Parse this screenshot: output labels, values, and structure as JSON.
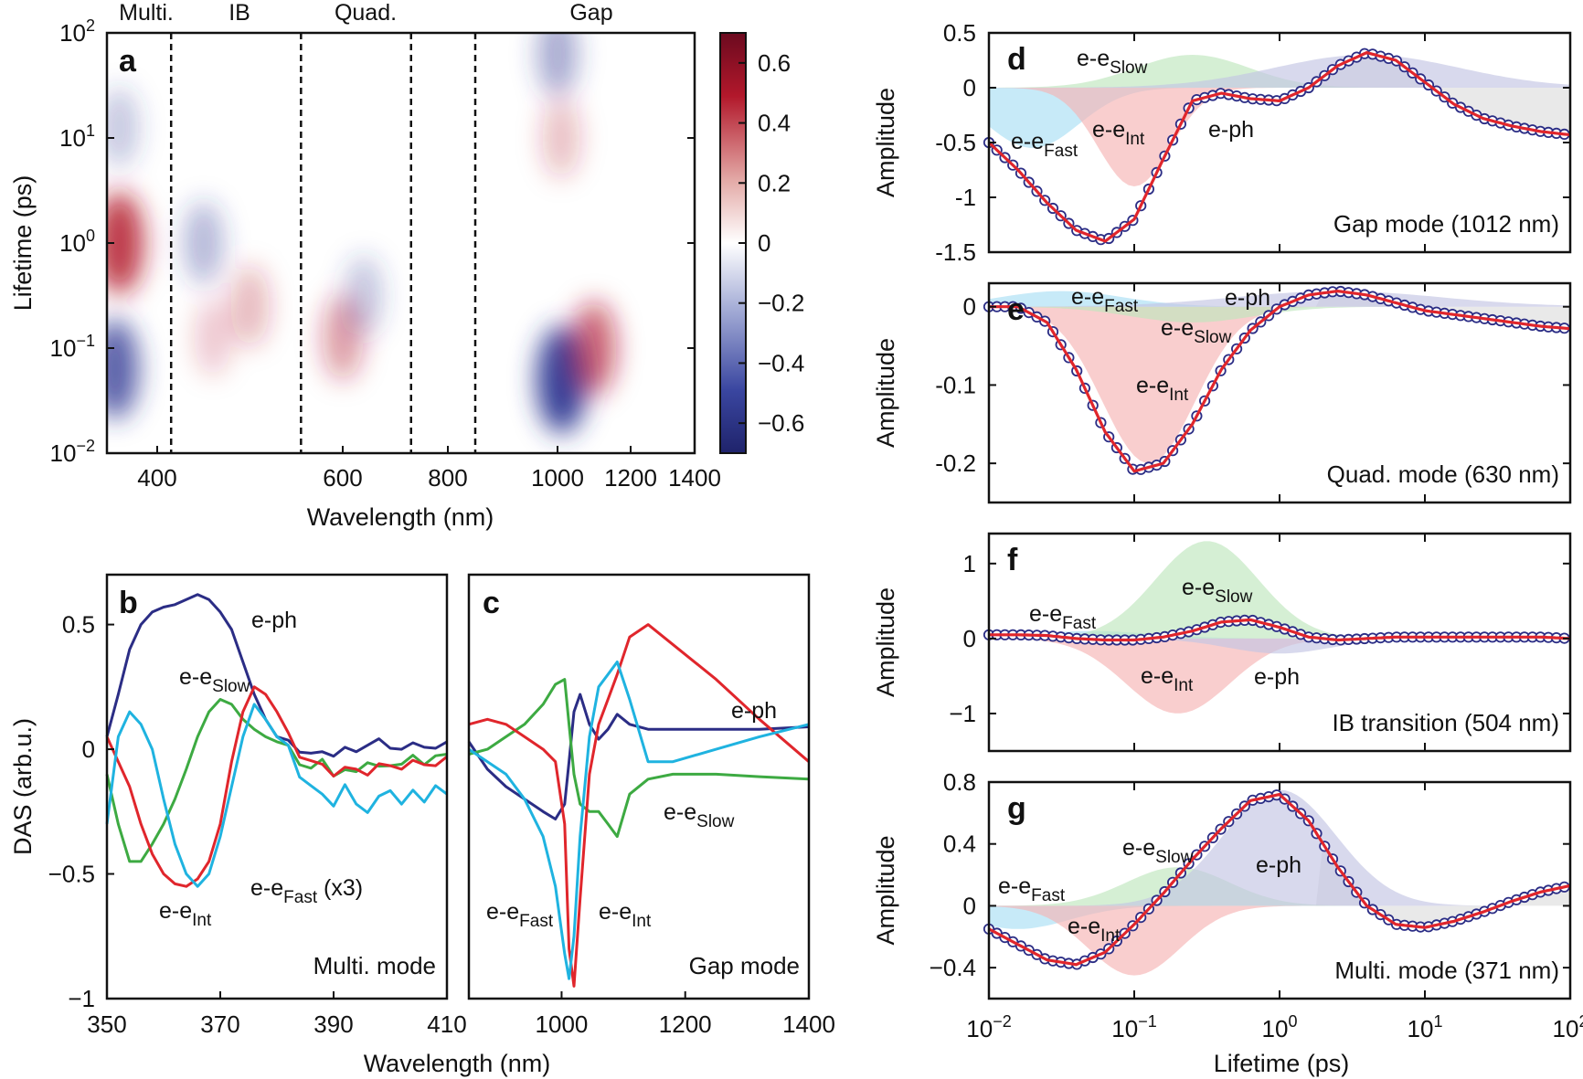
{
  "colors": {
    "ee_fast": "#1fb3e0",
    "ee_int": "#e0262c",
    "ee_slow": "#3daa42",
    "e_ph": "#2b2d85",
    "fit": "#e0262c",
    "pos_map": "#b2182b",
    "neg_map": "#2a3591"
  },
  "panel_labels": {
    "a": "a",
    "b": "b",
    "c": "c",
    "d": "d",
    "e": "e",
    "f": "f",
    "g": "g"
  },
  "annotations": {
    "ee_fast_base": "e-e",
    "ee_fast_sub": "Fast",
    "ee_fast_x3": " (x3)",
    "ee_int_base": "e-e",
    "ee_int_sub": "Int",
    "ee_slow_base": "e-e",
    "ee_slow_sub": "Slow",
    "e_ph": "e-ph"
  },
  "chart_data": [
    {
      "id": "a",
      "type": "heatmap",
      "title": "",
      "xlabel": "Wavelength (nm)",
      "ylabel": "Lifetime (ps)",
      "x_ticks": [
        "400",
        "600",
        "800",
        "1000",
        "1200",
        "1400"
      ],
      "y_ticks": [
        {
          "base": "10",
          "exp": "2"
        },
        {
          "base": "10",
          "exp": "1"
        },
        {
          "base": "10",
          "exp": "0"
        },
        {
          "base": "10",
          "exp": "−1"
        },
        {
          "base": "10",
          "exp": "−2"
        }
      ],
      "y_range_log10": [
        -2,
        2
      ],
      "regions": [
        "Multi.",
        "IB",
        "Quad.",
        "Gap"
      ],
      "region_boundaries_nm": [
        415,
        555,
        730,
        850
      ],
      "colorbar": {
        "range": [
          -0.7,
          0.7
        ],
        "ticks": [
          "0.6",
          "0.4",
          "0.2",
          "0",
          "−0.2",
          "−0.4",
          "−0.6"
        ]
      },
      "blobs": [
        {
          "band": "Multi.",
          "center_nm": 355,
          "log_t": 0.0,
          "value": 0.6
        },
        {
          "band": "Multi.",
          "center_nm": 350,
          "log_t": -1.2,
          "value": -0.55
        },
        {
          "band": "Multi.",
          "center_nm": 355,
          "log_t": 1.1,
          "value": -0.2
        },
        {
          "band": "IB",
          "center_nm": 450,
          "log_t": 0.0,
          "value": -0.25
        },
        {
          "band": "IB",
          "center_nm": 500,
          "log_t": -0.6,
          "value": 0.22
        },
        {
          "band": "IB",
          "center_nm": 460,
          "log_t": -0.9,
          "value": 0.15
        },
        {
          "band": "Quad.",
          "center_nm": 600,
          "log_t": -0.9,
          "value": 0.3
        },
        {
          "band": "Quad.",
          "center_nm": 640,
          "log_t": -0.5,
          "value": -0.2
        },
        {
          "band": "Gap",
          "center_nm": 1012,
          "log_t": -1.3,
          "value": -0.7
        },
        {
          "band": "Gap",
          "center_nm": 1010,
          "log_t": 1.0,
          "value": 0.2
        },
        {
          "band": "Gap",
          "center_nm": 1000,
          "log_t": 1.8,
          "value": -0.3
        },
        {
          "band": "Gap",
          "center_nm": 1100,
          "log_t": -1.0,
          "value": 0.45
        }
      ]
    },
    {
      "id": "b",
      "type": "line",
      "xlabel": "Wavelength (nm)",
      "ylabel": "DAS (arb.u.)",
      "mode_label": "Multi. mode",
      "xlim": [
        350,
        410
      ],
      "ylim": [
        -1,
        0.7
      ],
      "x_ticks": [
        "350",
        "370",
        "390",
        "410"
      ],
      "y_ticks": [
        "0.5",
        "0",
        "−0.5",
        "−1"
      ],
      "series": [
        {
          "name": "e-ph",
          "x": [
            350,
            352,
            354,
            356,
            358,
            360,
            362,
            364,
            366,
            368,
            370,
            372,
            374,
            376,
            378,
            380,
            382,
            384,
            386,
            388,
            390,
            392,
            394,
            396,
            398,
            400,
            402,
            404,
            406,
            408,
            410
          ],
          "values": [
            0.05,
            0.22,
            0.4,
            0.5,
            0.55,
            0.57,
            0.58,
            0.6,
            0.62,
            0.6,
            0.55,
            0.48,
            0.35,
            0.22,
            0.12,
            0.05,
            0.02,
            0.0,
            -0.02,
            -0.03,
            -0.02,
            0.0,
            0.01,
            0.02,
            0.03,
            0.02,
            0.0,
            0.01,
            0.02,
            0.0,
            0.01
          ]
        },
        {
          "name": "e-e Slow",
          "x": [
            350,
            352,
            354,
            356,
            358,
            360,
            362,
            364,
            366,
            368,
            370,
            372,
            374,
            376,
            378,
            380,
            382,
            384,
            386,
            388,
            390,
            392,
            394,
            396,
            398,
            400,
            402,
            404,
            406,
            408,
            410
          ],
          "values": [
            -0.1,
            -0.3,
            -0.45,
            -0.45,
            -0.38,
            -0.3,
            -0.2,
            -0.08,
            0.05,
            0.15,
            0.2,
            0.18,
            0.12,
            0.08,
            0.05,
            0.03,
            0.0,
            -0.05,
            -0.08,
            -0.06,
            -0.1,
            -0.09,
            -0.07,
            -0.05,
            -0.08,
            -0.05,
            -0.06,
            -0.04,
            -0.05,
            -0.03,
            -0.04
          ]
        },
        {
          "name": "e-e Int",
          "x": [
            350,
            352,
            354,
            356,
            358,
            360,
            362,
            364,
            366,
            368,
            370,
            372,
            374,
            376,
            378,
            380,
            382,
            384,
            386,
            388,
            390,
            392,
            394,
            396,
            398,
            400,
            402,
            404,
            406,
            408,
            410
          ],
          "values": [
            0.05,
            -0.05,
            -0.15,
            -0.3,
            -0.42,
            -0.5,
            -0.54,
            -0.55,
            -0.52,
            -0.45,
            -0.3,
            -0.05,
            0.15,
            0.25,
            0.22,
            0.15,
            0.05,
            -0.02,
            -0.05,
            -0.08,
            -0.1,
            -0.08,
            -0.06,
            -0.1,
            -0.07,
            -0.05,
            -0.08,
            -0.06,
            -0.05,
            -0.07,
            -0.05
          ]
        },
        {
          "name": "e-e Fast (x3)",
          "x": [
            350,
            352,
            354,
            356,
            358,
            360,
            362,
            364,
            366,
            368,
            370,
            372,
            374,
            376,
            378,
            380,
            382,
            384,
            386,
            388,
            390,
            392,
            394,
            396,
            398,
            400,
            402,
            404,
            406,
            408,
            410
          ],
          "values": [
            -0.3,
            0.05,
            0.15,
            0.1,
            0.0,
            -0.2,
            -0.38,
            -0.5,
            -0.55,
            -0.5,
            -0.35,
            -0.15,
            0.05,
            0.18,
            0.12,
            0.05,
            0.0,
            -0.1,
            -0.15,
            -0.2,
            -0.22,
            -0.15,
            -0.2,
            -0.25,
            -0.2,
            -0.15,
            -0.22,
            -0.18,
            -0.2,
            -0.15,
            -0.2
          ]
        }
      ]
    },
    {
      "id": "c",
      "type": "line",
      "xlabel": "Wavelength (nm)",
      "ylabel": "",
      "mode_label": "Gap mode",
      "xlim": [
        850,
        1400
      ],
      "ylim": [
        -1,
        0.7
      ],
      "x_ticks": [
        "1000",
        "1200",
        "1400"
      ],
      "series": [
        {
          "name": "e-ph",
          "x": [
            850,
            880,
            910,
            940,
            970,
            990,
            1005,
            1012,
            1020,
            1030,
            1045,
            1060,
            1075,
            1090,
            1110,
            1140,
            1180,
            1250,
            1320,
            1400
          ],
          "values": [
            0.03,
            -0.08,
            -0.15,
            -0.2,
            -0.25,
            -0.28,
            -0.22,
            -0.05,
            0.15,
            0.22,
            0.1,
            0.04,
            0.08,
            0.14,
            0.1,
            0.08,
            0.08,
            0.08,
            0.08,
            0.09
          ]
        },
        {
          "name": "e-e Slow",
          "x": [
            850,
            880,
            910,
            940,
            970,
            990,
            1005,
            1012,
            1020,
            1030,
            1045,
            1060,
            1075,
            1090,
            1110,
            1140,
            1180,
            1250,
            1320,
            1400
          ],
          "values": [
            -0.02,
            0.0,
            0.05,
            0.1,
            0.18,
            0.26,
            0.28,
            0.1,
            -0.1,
            -0.22,
            -0.25,
            -0.25,
            -0.3,
            -0.35,
            -0.18,
            -0.12,
            -0.1,
            -0.1,
            -0.11,
            -0.12
          ]
        },
        {
          "name": "e-e Int",
          "x": [
            850,
            880,
            910,
            940,
            970,
            990,
            1005,
            1012,
            1020,
            1030,
            1045,
            1060,
            1075,
            1090,
            1110,
            1140,
            1180,
            1250,
            1320,
            1400
          ],
          "values": [
            0.1,
            0.12,
            0.1,
            0.05,
            0.0,
            -0.05,
            -0.3,
            -0.8,
            -0.95,
            -0.6,
            -0.1,
            0.1,
            0.2,
            0.3,
            0.45,
            0.5,
            0.42,
            0.28,
            0.12,
            -0.05
          ]
        },
        {
          "name": "e-e Fast",
          "x": [
            850,
            880,
            910,
            940,
            970,
            990,
            1005,
            1012,
            1020,
            1030,
            1045,
            1060,
            1075,
            1090,
            1110,
            1140,
            1180,
            1250,
            1320,
            1400
          ],
          "values": [
            0.0,
            -0.05,
            -0.1,
            -0.2,
            -0.35,
            -0.55,
            -0.82,
            -0.92,
            -0.75,
            -0.35,
            0.05,
            0.25,
            0.3,
            0.35,
            0.2,
            -0.05,
            -0.05,
            0.0,
            0.05,
            0.1
          ]
        }
      ]
    },
    {
      "id": "d",
      "type": "area",
      "xlabel": "Lifetime (ps)",
      "ylabel": "Amplitude",
      "mode_label": "Gap mode (1012 nm)",
      "x_log10_range": [
        -2,
        2
      ],
      "ylim": [
        -1.5,
        0.5
      ],
      "y_ticks": [
        "0.5",
        "0",
        "-0.5",
        "-1",
        "-1.5"
      ],
      "components": [
        {
          "name": "e-e Fast",
          "center_log_t": -1.7,
          "width": 0.45,
          "amp": -0.55
        },
        {
          "name": "e-e Int",
          "center_log_t": -1.0,
          "width": 0.35,
          "amp": -0.9
        },
        {
          "name": "e-e Slow",
          "center_log_t": -0.6,
          "width": 0.55,
          "amp": 0.3
        },
        {
          "name": "e-ph",
          "center_log_t": 0.6,
          "width": 0.9,
          "amp": 0.3
        }
      ],
      "fit": {
        "log_t": [
          -2,
          -1.8,
          -1.6,
          -1.4,
          -1.2,
          -1.0,
          -0.8,
          -0.6,
          -0.4,
          -0.2,
          0.0,
          0.2,
          0.4,
          0.6,
          0.8,
          1.0,
          1.2,
          1.4,
          1.6,
          1.8,
          2.0
        ],
        "values": [
          -0.5,
          -0.75,
          -1.05,
          -1.3,
          -1.4,
          -1.2,
          -0.65,
          -0.12,
          -0.05,
          -0.1,
          -0.12,
          0.0,
          0.2,
          0.32,
          0.25,
          0.05,
          -0.15,
          -0.28,
          -0.35,
          -0.4,
          -0.43
        ]
      }
    },
    {
      "id": "e",
      "type": "area",
      "xlabel": "Lifetime (ps)",
      "ylabel": "Amplitude",
      "mode_label": "Quad. mode (630 nm)",
      "x_log10_range": [
        -2,
        2
      ],
      "ylim": [
        -0.25,
        0.03
      ],
      "y_ticks": [
        "0",
        "-0.1",
        "-0.2"
      ],
      "components": [
        {
          "name": "e-e Fast",
          "center_log_t": -1.5,
          "width": 0.6,
          "amp": 0.02
        },
        {
          "name": "e-e Int",
          "center_log_t": -0.9,
          "width": 0.45,
          "amp": -0.2
        },
        {
          "name": "e-e Slow",
          "center_log_t": -0.6,
          "width": 0.6,
          "amp": -0.02
        },
        {
          "name": "e-ph",
          "center_log_t": 0.4,
          "width": 1.0,
          "amp": 0.02
        }
      ],
      "fit": {
        "log_t": [
          -2,
          -1.8,
          -1.6,
          -1.4,
          -1.2,
          -1.0,
          -0.8,
          -0.6,
          -0.4,
          -0.2,
          0.0,
          0.2,
          0.4,
          0.6,
          0.8,
          1.0,
          1.2,
          1.4,
          1.6,
          1.8,
          2.0
        ],
        "values": [
          0.0,
          0.0,
          -0.02,
          -0.08,
          -0.16,
          -0.21,
          -0.2,
          -0.15,
          -0.08,
          -0.03,
          0.0,
          0.015,
          0.02,
          0.015,
          0.005,
          -0.005,
          -0.01,
          -0.015,
          -0.02,
          -0.025,
          -0.028
        ]
      }
    },
    {
      "id": "f",
      "type": "area",
      "xlabel": "Lifetime (ps)",
      "ylabel": "Amplitude",
      "mode_label": "IB transition (504 nm)",
      "x_log10_range": [
        -2,
        2
      ],
      "ylim": [
        -1.5,
        1.4
      ],
      "y_ticks": [
        "1",
        "0",
        "−1"
      ],
      "components": [
        {
          "name": "e-e Fast",
          "center_log_t": -1.3,
          "width": 0.6,
          "amp": 0.1
        },
        {
          "name": "e-e Int",
          "center_log_t": -0.7,
          "width": 0.5,
          "amp": -1.0
        },
        {
          "name": "e-e Slow",
          "center_log_t": -0.5,
          "width": 0.5,
          "amp": 1.3
        },
        {
          "name": "e-ph",
          "center_log_t": 0.0,
          "width": 0.5,
          "amp": -0.2
        }
      ],
      "fit": {
        "log_t": [
          -2,
          -1.8,
          -1.6,
          -1.4,
          -1.2,
          -1.0,
          -0.8,
          -0.6,
          -0.4,
          -0.2,
          0.0,
          0.2,
          0.4,
          0.6,
          0.8,
          1.0,
          1.2,
          1.4,
          1.6,
          1.8,
          2.0
        ],
        "values": [
          0.05,
          0.05,
          0.04,
          0.0,
          -0.02,
          -0.02,
          0.02,
          0.1,
          0.22,
          0.25,
          0.15,
          0.02,
          -0.02,
          0.0,
          0.02,
          0.02,
          0.02,
          0.02,
          0.02,
          0.02,
          0.0
        ]
      }
    },
    {
      "id": "g",
      "type": "area",
      "xlabel": "Lifetime (ps)",
      "ylabel": "Amplitude",
      "mode_label": "Multi. mode (371 nm)",
      "x_log10_range": [
        -2,
        2
      ],
      "x_ticks": [
        {
          "base": "10",
          "exp": "−2"
        },
        {
          "base": "10",
          "exp": "−1"
        },
        {
          "base": "10",
          "exp": "0"
        },
        {
          "base": "10",
          "exp": "1"
        },
        {
          "base": "10",
          "exp": "2"
        }
      ],
      "ylim": [
        -0.6,
        0.8
      ],
      "y_ticks": [
        "0.8",
        "0.4",
        "0",
        "−0.4"
      ],
      "components": [
        {
          "name": "e-e Fast",
          "center_log_t": -1.8,
          "width": 0.5,
          "amp": -0.15
        },
        {
          "name": "e-e Int",
          "center_log_t": -1.0,
          "width": 0.45,
          "amp": -0.45
        },
        {
          "name": "e-e Slow",
          "center_log_t": -0.7,
          "width": 0.5,
          "amp": 0.25
        },
        {
          "name": "e-ph",
          "center_log_t": 0.0,
          "width": 0.55,
          "amp": 0.75
        }
      ],
      "fit": {
        "log_t": [
          -2,
          -1.8,
          -1.6,
          -1.4,
          -1.2,
          -1.0,
          -0.8,
          -0.6,
          -0.4,
          -0.2,
          0.0,
          0.2,
          0.4,
          0.6,
          0.8,
          1.0,
          1.2,
          1.4,
          1.6,
          1.8,
          2.0
        ],
        "values": [
          -0.15,
          -0.25,
          -0.35,
          -0.38,
          -0.3,
          -0.12,
          0.08,
          0.3,
          0.5,
          0.68,
          0.72,
          0.55,
          0.25,
          0.0,
          -0.12,
          -0.14,
          -0.1,
          -0.04,
          0.03,
          0.09,
          0.13
        ]
      }
    }
  ]
}
